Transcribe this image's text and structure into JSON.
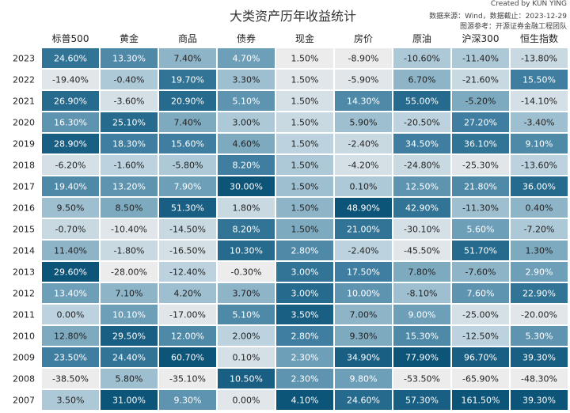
{
  "chart_data": {
    "type": "heatmap",
    "title": "大类资产历年收益统计",
    "credits": {
      "author": "Created by KUN YING",
      "source": "数据来源：Wind，数据截止：2023-12-29",
      "reference": "图源参考：开源证券金融工程团队"
    },
    "columns": [
      "标普500",
      "黄金",
      "商品",
      "债券",
      "现金",
      "房价",
      "原油",
      "沪深300",
      "恒生指数"
    ],
    "rows": [
      "2023",
      "2022",
      "2021",
      "2020",
      "2019",
      "2018",
      "2017",
      "2016",
      "2015",
      "2014",
      "2013",
      "2012",
      "2011",
      "2010",
      "2009",
      "2008",
      "2007"
    ],
    "values": [
      [
        "24.60%",
        "13.30%",
        "7.40%",
        "4.70%",
        "1.50%",
        "-8.90%",
        "-10.60%",
        "-11.40%",
        "-13.80%"
      ],
      [
        "-19.40%",
        "-0.40%",
        "19.70%",
        "3.30%",
        "1.50%",
        "-5.90%",
        "6.70%",
        "-21.60%",
        "15.50%"
      ],
      [
        "26.90%",
        "-3.60%",
        "20.90%",
        "5.10%",
        "1.50%",
        "14.30%",
        "55.00%",
        "-5.20%",
        "-14.10%"
      ],
      [
        "16.30%",
        "25.10%",
        "7.40%",
        "3.00%",
        "1.50%",
        "5.90%",
        "-20.50%",
        "27.20%",
        "-3.40%"
      ],
      [
        "28.90%",
        "18.30%",
        "15.60%",
        "4.60%",
        "1.50%",
        "-2.40%",
        "34.50%",
        "36.10%",
        "9.10%"
      ],
      [
        "-6.20%",
        "-1.60%",
        "-5.80%",
        "8.20%",
        "1.50%",
        "-4.20%",
        "-24.80%",
        "-25.30%",
        "-13.60%"
      ],
      [
        "19.40%",
        "13.20%",
        "7.90%",
        "30.00%",
        "1.50%",
        "0.10%",
        "12.50%",
        "21.80%",
        "36.00%"
      ],
      [
        "9.50%",
        "8.50%",
        "51.30%",
        "1.80%",
        "1.50%",
        "48.90%",
        "42.90%",
        "-11.30%",
        "0.40%"
      ],
      [
        "-0.70%",
        "-10.40%",
        "-14.50%",
        "8.20%",
        "1.50%",
        "21.00%",
        "-30.10%",
        "5.60%",
        "-7.20%"
      ],
      [
        "11.40%",
        "-1.80%",
        "-16.50%",
        "10.30%",
        "2.80%",
        "-2.40%",
        "-45.50%",
        "51.70%",
        "1.30%"
      ],
      [
        "29.60%",
        "-28.00%",
        "-12.40%",
        "-0.30%",
        "3.00%",
        "17.50%",
        "7.80%",
        "-7.60%",
        "2.90%"
      ],
      [
        "13.40%",
        "7.10%",
        "4.20%",
        "3.70%",
        "3.00%",
        "10.00%",
        "-8.10%",
        "7.60%",
        "22.90%"
      ],
      [
        "0.00%",
        "10.10%",
        "-17.00%",
        "5.10%",
        "3.50%",
        "7.00%",
        "9.00%",
        "-25.00%",
        "-20.00%"
      ],
      [
        "12.80%",
        "29.50%",
        "12.00%",
        "2.00%",
        "2.80%",
        "9.30%",
        "15.30%",
        "-12.50%",
        "5.30%"
      ],
      [
        "23.50%",
        "24.40%",
        "60.70%",
        "0.10%",
        "2.30%",
        "34.90%",
        "77.90%",
        "96.70%",
        "39.30%"
      ],
      [
        "-38.50%",
        "5.80%",
        "-35.10%",
        "10.50%",
        "2.30%",
        "9.80%",
        "-53.50%",
        "-65.90%",
        "-48.30%"
      ],
      [
        "3.50%",
        "31.00%",
        "9.30%",
        "0.00%",
        "4.10%",
        "24.60%",
        "57.30%",
        "161.50%",
        "39.30%"
      ]
    ],
    "color_scale": {
      "stops": [
        "#ececec",
        "#bcd3df",
        "#7eaac0",
        "#3f7ea0",
        "#0c5579"
      ],
      "text_dark": "#222222",
      "text_light": "#ffffff"
    }
  }
}
